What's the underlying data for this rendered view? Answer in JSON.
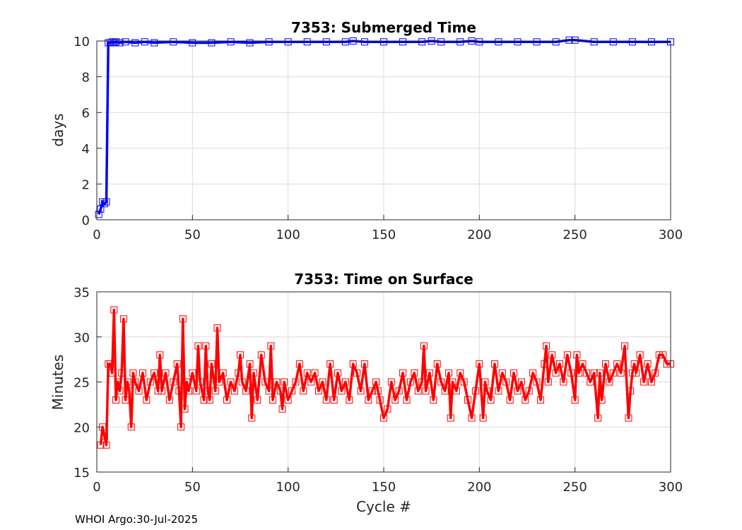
{
  "footer": "WHOI Argo:30-Jul-2025",
  "chart_data": [
    {
      "type": "line",
      "title": "7353: Submerged Time",
      "xlabel": "",
      "ylabel": "days",
      "xlim": [
        0,
        300
      ],
      "ylim": [
        0,
        10
      ],
      "xticks": [
        0,
        50,
        100,
        150,
        200,
        250,
        300
      ],
      "yticks": [
        0,
        2,
        4,
        6,
        8,
        10
      ],
      "grid": true,
      "marker": "square",
      "color": "#0000ff",
      "series": [
        {
          "x": [
            1,
            2,
            3,
            4,
            5,
            6,
            7,
            8,
            9,
            10,
            12,
            15,
            20,
            25,
            30,
            40,
            50,
            60,
            70,
            80,
            90,
            100,
            110,
            120,
            130,
            134,
            140,
            150,
            160,
            170,
            175,
            180,
            190,
            196,
            200,
            210,
            220,
            230,
            240,
            247,
            250,
            260,
            270,
            280,
            290,
            300
          ],
          "values": [
            0.3,
            0.6,
            1.0,
            0.9,
            1.0,
            9.9,
            9.9,
            9.95,
            9.9,
            9.95,
            9.9,
            9.95,
            9.9,
            9.95,
            9.9,
            9.95,
            9.9,
            9.9,
            9.95,
            9.9,
            9.95,
            9.95,
            9.95,
            9.95,
            9.95,
            10.0,
            9.95,
            9.95,
            9.95,
            9.95,
            10.0,
            9.95,
            9.95,
            10.0,
            9.95,
            9.95,
            9.95,
            9.95,
            9.95,
            10.05,
            10.05,
            9.95,
            9.95,
            9.95,
            9.95,
            9.95
          ]
        }
      ]
    },
    {
      "type": "line",
      "title": "7353: Time on Surface",
      "xlabel": "Cycle #",
      "ylabel": "Minutes",
      "xlim": [
        0,
        300
      ],
      "ylim": [
        15,
        35
      ],
      "xticks": [
        0,
        50,
        100,
        150,
        200,
        250,
        300
      ],
      "yticks": [
        15,
        20,
        25,
        30,
        35
      ],
      "grid": true,
      "marker": "square",
      "color": "#ff0000",
      "series": [
        {
          "x": [
            2,
            3,
            4,
            5,
            6,
            7,
            8,
            9,
            10,
            11,
            12,
            13,
            14,
            15,
            16,
            17,
            18,
            19,
            20,
            22,
            24,
            26,
            28,
            30,
            32,
            33,
            34,
            36,
            38,
            40,
            42,
            43,
            44,
            45,
            46,
            47,
            48,
            50,
            52,
            53,
            54,
            56,
            57,
            58,
            59,
            60,
            62,
            63,
            64,
            66,
            68,
            70,
            72,
            74,
            75,
            76,
            78,
            80,
            81,
            82,
            84,
            86,
            88,
            90,
            91,
            92,
            94,
            96,
            97,
            98,
            100,
            102,
            104,
            106,
            108,
            110,
            112,
            114,
            116,
            118,
            120,
            122,
            124,
            126,
            128,
            130,
            132,
            134,
            136,
            138,
            140,
            142,
            144,
            146,
            147,
            148,
            150,
            152,
            154,
            156,
            158,
            160,
            162,
            164,
            166,
            168,
            170,
            171,
            172,
            174,
            176,
            178,
            180,
            182,
            184,
            185,
            186,
            188,
            190,
            192,
            194,
            196,
            198,
            200,
            202,
            203,
            204,
            206,
            208,
            210,
            212,
            214,
            216,
            218,
            220,
            222,
            224,
            226,
            228,
            230,
            232,
            234,
            235,
            236,
            238,
            240,
            242,
            244,
            246,
            248,
            250,
            251,
            252,
            254,
            256,
            258,
            260,
            262,
            263,
            264,
            266,
            268,
            270,
            272,
            274,
            276,
            278,
            279,
            280,
            281,
            282,
            284,
            286,
            288,
            290,
            292,
            294,
            296,
            298,
            300
          ],
          "values": [
            18,
            20,
            19,
            18,
            27,
            27,
            26,
            33,
            23,
            25,
            24,
            26,
            32,
            23,
            25,
            24,
            20,
            26,
            25,
            24,
            26,
            23,
            25,
            26,
            24,
            28,
            24,
            26,
            23,
            25,
            27,
            24,
            20,
            32,
            22,
            25,
            24,
            26,
            24,
            29,
            25,
            23,
            29,
            24,
            23,
            27,
            24,
            31,
            25,
            26,
            23,
            25,
            24,
            26,
            28,
            25,
            24,
            27,
            21,
            26,
            23,
            28,
            25,
            24,
            29,
            23,
            25,
            24,
            22,
            25,
            23,
            24,
            25,
            27,
            24,
            26,
            25,
            26,
            24,
            25,
            23,
            27,
            23,
            26,
            24,
            25,
            23,
            27,
            26,
            24,
            27,
            23,
            24,
            25,
            24,
            23,
            21,
            22,
            25,
            23,
            24,
            26,
            23,
            25,
            26,
            24,
            25,
            29,
            24,
            26,
            23,
            27,
            25,
            24,
            26,
            21,
            25,
            24,
            26,
            25,
            23,
            21,
            24,
            27,
            21,
            25,
            24,
            23,
            27,
            24,
            26,
            25,
            23,
            26,
            24,
            25,
            23,
            24,
            26,
            25,
            23,
            27,
            29,
            25,
            28,
            26,
            27,
            25,
            28,
            26,
            23,
            28,
            26,
            27,
            26,
            25,
            26,
            21,
            26,
            23,
            27,
            25,
            26,
            27,
            26,
            29,
            21,
            24,
            26,
            27,
            26,
            28,
            25,
            27,
            25,
            26,
            28,
            28,
            27,
            27
          ]
        }
      ]
    }
  ]
}
